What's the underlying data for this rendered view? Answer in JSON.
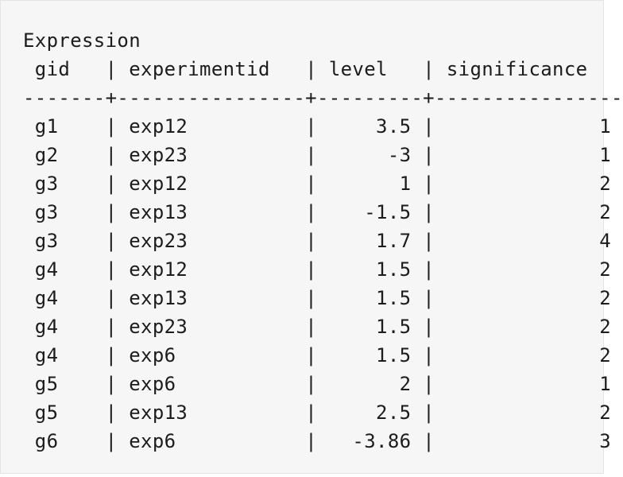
{
  "table": {
    "title": "Expression",
    "columns": [
      {
        "name": "gid",
        "width": 5,
        "align": "left"
      },
      {
        "name": "experimentid",
        "width": 14,
        "align": "left"
      },
      {
        "name": "level",
        "width": 7,
        "align": "right"
      },
      {
        "name": "significance",
        "width": 14,
        "align": "right"
      }
    ],
    "rows": [
      [
        "g1",
        "exp12",
        "3.5",
        "1"
      ],
      [
        "g2",
        "exp23",
        "-3",
        "1"
      ],
      [
        "g3",
        "exp12",
        "1",
        "2"
      ],
      [
        "g3",
        "exp13",
        "-1.5",
        "2"
      ],
      [
        "g3",
        "exp23",
        "1.7",
        "4"
      ],
      [
        "g4",
        "exp12",
        "1.5",
        "2"
      ],
      [
        "g4",
        "exp13",
        "1.5",
        "2"
      ],
      [
        "g4",
        "exp23",
        "1.5",
        "2"
      ],
      [
        "g4",
        "exp6",
        "1.5",
        "2"
      ],
      [
        "g5",
        "exp6",
        "2",
        "1"
      ],
      [
        "g5",
        "exp13",
        "2.5",
        "2"
      ],
      [
        "g6",
        "exp6",
        "-3.86",
        "3"
      ]
    ]
  }
}
